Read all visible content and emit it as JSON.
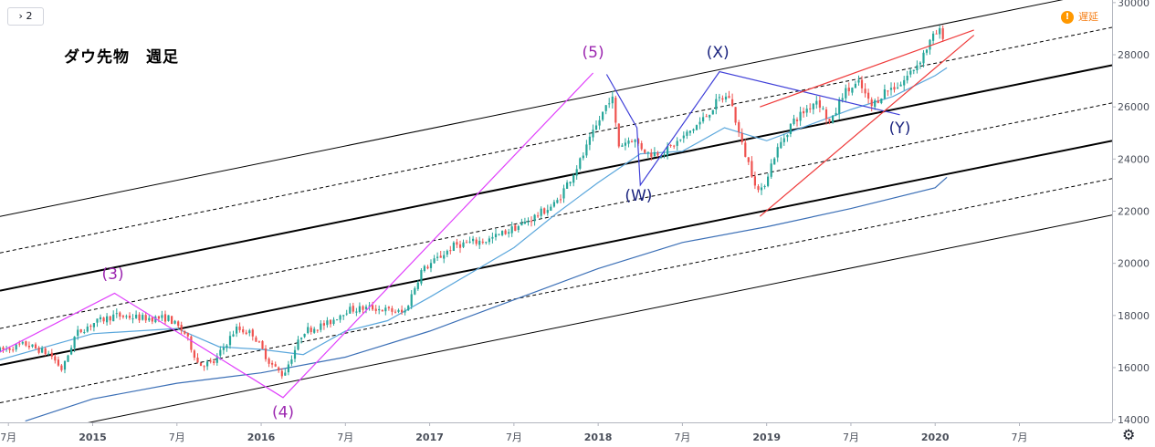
{
  "header": {
    "interval_badge": "› 2",
    "title": "ダウ先物　週足",
    "delay_icon": "!",
    "delay_label": "遅延",
    "settings_icon": "⚙"
  },
  "chart_data": {
    "type": "candlestick",
    "title": "ダウ先物 週足",
    "ylim": [
      13900,
      30100
    ],
    "xlim": [
      2014.45,
      2021.05
    ],
    "y_ticks": [
      14000,
      16000,
      18000,
      20000,
      22000,
      24000,
      26000,
      28000,
      30000
    ],
    "x_ticks": [
      {
        "label": "7月",
        "t": 2014.5
      },
      {
        "label": "2015",
        "t": 2015.0
      },
      {
        "label": "7月",
        "t": 2015.5
      },
      {
        "label": "2016",
        "t": 2016.0
      },
      {
        "label": "7月",
        "t": 2016.5
      },
      {
        "label": "2017",
        "t": 2017.0
      },
      {
        "label": "7月",
        "t": 2017.5
      },
      {
        "label": "2018",
        "t": 2018.0
      },
      {
        "label": "7月",
        "t": 2018.5
      },
      {
        "label": "2019",
        "t": 2019.0
      },
      {
        "label": "7月",
        "t": 2019.5
      },
      {
        "label": "2020",
        "t": 2020.0
      },
      {
        "label": "7月",
        "t": 2020.5
      }
    ],
    "price_path": [
      [
        2014.45,
        16650
      ],
      [
        2014.6,
        16900
      ],
      [
        2014.75,
        16500
      ],
      [
        2014.82,
        15900
      ],
      [
        2014.9,
        17300
      ],
      [
        2015.0,
        17700
      ],
      [
        2015.13,
        18000
      ],
      [
        2015.3,
        17900
      ],
      [
        2015.45,
        17900
      ],
      [
        2015.55,
        17300
      ],
      [
        2015.63,
        16100
      ],
      [
        2015.72,
        16200
      ],
      [
        2015.85,
        17500
      ],
      [
        2015.95,
        17300
      ],
      [
        2016.05,
        16200
      ],
      [
        2016.13,
        15700
      ],
      [
        2016.25,
        17400
      ],
      [
        2016.4,
        17700
      ],
      [
        2016.5,
        18200
      ],
      [
        2016.65,
        18300
      ],
      [
        2016.85,
        18100
      ],
      [
        2016.95,
        19700
      ],
      [
        2017.15,
        20700
      ],
      [
        2017.35,
        20900
      ],
      [
        2017.55,
        21500
      ],
      [
        2017.75,
        22300
      ],
      [
        2017.9,
        24000
      ],
      [
        2018.05,
        26100
      ],
      [
        2018.08,
        26500
      ],
      [
        2018.12,
        24500
      ],
      [
        2018.2,
        24800
      ],
      [
        2018.3,
        24200
      ],
      [
        2018.4,
        24300
      ],
      [
        2018.5,
        24800
      ],
      [
        2018.62,
        25500
      ],
      [
        2018.72,
        26300
      ],
      [
        2018.78,
        26400
      ],
      [
        2018.85,
        24600
      ],
      [
        2018.96,
        22600
      ],
      [
        2019.05,
        24200
      ],
      [
        2019.15,
        25400
      ],
      [
        2019.3,
        26300
      ],
      [
        2019.38,
        25300
      ],
      [
        2019.45,
        26500
      ],
      [
        2019.55,
        26900
      ],
      [
        2019.62,
        26000
      ],
      [
        2019.7,
        26600
      ],
      [
        2019.8,
        26900
      ],
      [
        2019.9,
        27700
      ],
      [
        2019.98,
        28600
      ],
      [
        2020.02,
        28900
      ],
      [
        2020.06,
        28700
      ]
    ],
    "moving_averages": [
      {
        "name": "MA-short",
        "color": "#5ba7dc",
        "points": [
          [
            2014.45,
            16300
          ],
          [
            2015.0,
            17300
          ],
          [
            2015.5,
            17500
          ],
          [
            2015.75,
            16800
          ],
          [
            2016.0,
            16700
          ],
          [
            2016.25,
            16500
          ],
          [
            2016.5,
            17400
          ],
          [
            2016.75,
            17800
          ],
          [
            2017.0,
            18700
          ],
          [
            2017.5,
            20600
          ],
          [
            2017.75,
            21900
          ],
          [
            2018.0,
            23100
          ],
          [
            2018.25,
            24200
          ],
          [
            2018.5,
            24300
          ],
          [
            2018.75,
            25200
          ],
          [
            2019.0,
            24700
          ],
          [
            2019.25,
            25300
          ],
          [
            2019.5,
            25900
          ],
          [
            2019.75,
            26400
          ],
          [
            2020.0,
            27200
          ],
          [
            2020.07,
            27500
          ]
        ]
      },
      {
        "name": "MA-long",
        "color": "#3b6fb6",
        "points": [
          [
            2014.6,
            13950
          ],
          [
            2015.0,
            14800
          ],
          [
            2015.5,
            15400
          ],
          [
            2016.0,
            15800
          ],
          [
            2016.5,
            16400
          ],
          [
            2017.0,
            17400
          ],
          [
            2017.5,
            18600
          ],
          [
            2018.0,
            19800
          ],
          [
            2018.5,
            20800
          ],
          [
            2019.0,
            21400
          ],
          [
            2019.5,
            22100
          ],
          [
            2020.0,
            22900
          ],
          [
            2020.07,
            23300
          ]
        ]
      }
    ],
    "channel_lines": [
      {
        "style": "thin-solid",
        "p1": [
          2014.45,
          21800
        ],
        "p2": [
          2021.05,
          30500
        ]
      },
      {
        "style": "dashed",
        "p1": [
          2014.45,
          20400
        ],
        "p2": [
          2021.05,
          29050
        ]
      },
      {
        "style": "thick-solid",
        "p1": [
          2014.45,
          18950
        ],
        "p2": [
          2021.05,
          27600
        ]
      },
      {
        "style": "dashed",
        "p1": [
          2014.45,
          17500
        ],
        "p2": [
          2021.05,
          26150
        ]
      },
      {
        "style": "thick-solid",
        "p1": [
          2014.45,
          16100
        ],
        "p2": [
          2021.05,
          24700
        ]
      },
      {
        "style": "dashed",
        "p1": [
          2014.45,
          14650
        ],
        "p2": [
          2021.05,
          23250
        ]
      },
      {
        "style": "thin-solid",
        "p1": [
          2014.45,
          13200
        ],
        "p2": [
          2021.05,
          21850
        ]
      }
    ],
    "wave_lines": [
      {
        "color": "#e040fb",
        "points": [
          [
            2014.45,
            16600
          ],
          [
            2015.13,
            18850
          ],
          [
            2016.13,
            14850
          ],
          [
            2017.97,
            27300
          ]
        ]
      },
      {
        "color": "#3f3fd8",
        "points": [
          [
            2018.05,
            27250
          ],
          [
            2018.23,
            25200
          ],
          [
            2018.25,
            23000
          ],
          [
            2018.72,
            27350
          ],
          [
            2019.79,
            25700
          ]
        ]
      },
      {
        "color": "#ef3b3b",
        "points": [
          [
            2018.96,
            26000
          ],
          [
            2020.23,
            28950
          ]
        ]
      },
      {
        "color": "#ef3b3b",
        "points": [
          [
            2018.96,
            21800
          ],
          [
            2020.23,
            28750
          ]
        ]
      }
    ],
    "annotations": [
      {
        "label": "(3)",
        "t": 2015.12,
        "price": 19400,
        "color": "#9c27b0"
      },
      {
        "label": "(4)",
        "t": 2016.13,
        "price": 14100,
        "color": "#9c27b0"
      },
      {
        "label": "(5)",
        "t": 2017.97,
        "price": 27900,
        "color": "#9c27b0"
      },
      {
        "label": "(W)",
        "t": 2018.24,
        "price": 22400,
        "color": "#1a237e"
      },
      {
        "label": "(X)",
        "t": 2018.71,
        "price": 27900,
        "color": "#1a237e"
      },
      {
        "label": "(Y)",
        "t": 2019.79,
        "price": 25000,
        "color": "#1a237e"
      }
    ]
  }
}
